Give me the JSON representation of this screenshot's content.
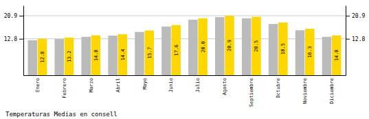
{
  "chart_data": {
    "type": "bar",
    "title": "Temperaturas Medias en consell",
    "categories": [
      "Enero",
      "Febrero",
      "Marzo",
      "Abril",
      "Mayo",
      "Junio",
      "Julio",
      "Agosto",
      "Septiembre",
      "Octubre",
      "Noviembre",
      "Diciembre"
    ],
    "series": [
      {
        "color": "#BBBBBB",
        "values": [
          12.3,
          12.7,
          13.5,
          13.9,
          15.2,
          17.1,
          19.5,
          20.4,
          20.0,
          18.0,
          15.8,
          13.5
        ]
      },
      {
        "color": "#FFD700",
        "values": [
          12.8,
          13.2,
          14.0,
          14.4,
          15.7,
          17.6,
          20.0,
          20.9,
          20.5,
          18.5,
          16.3,
          14.0
        ],
        "data_labels": true,
        "value_labels": [
          "12.8",
          "13.2",
          "14.0",
          "14.4",
          "15.7",
          "17.6",
          "20.0",
          "20.9",
          "20.5",
          "18.5",
          "16.3",
          "14.0"
        ]
      }
    ],
    "ylim": [
      0,
      24.5
    ],
    "yticks": [
      12.8,
      20.9
    ],
    "y2lim": [
      0,
      24.5
    ],
    "y2ticks": [
      12.8,
      20.9
    ],
    "grid": true
  }
}
